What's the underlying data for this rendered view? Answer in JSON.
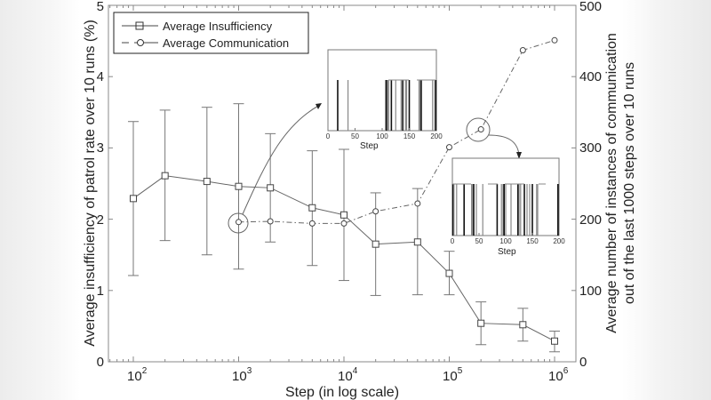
{
  "chart_data": {
    "type": "line",
    "title": "",
    "xlabel": "Step (in log scale)",
    "ylabel": "Average insufficiency of patrol rate over 10 runs (%)",
    "ylabel_right": [
      "Average number of instances of communication",
      "out of the last 1000 steps over 10 runs"
    ],
    "xscale": "log",
    "xlim": [
      60,
      1300000
    ],
    "ylim": [
      0,
      5
    ],
    "ylim_right": [
      0,
      500
    ],
    "x_ticks": [
      "10^2",
      "10^3",
      "10^4",
      "10^5",
      "10^6"
    ],
    "y_ticks": [
      "0",
      "1",
      "2",
      "3",
      "4",
      "5"
    ],
    "y_ticks_right": [
      "0",
      "100",
      "200",
      "300",
      "400",
      "500"
    ],
    "grid": false,
    "legend_position": "upper left",
    "series": [
      {
        "name": "Average Insufficiency",
        "axis": "left",
        "marker": "square",
        "linestyle": "solid",
        "x": [
          100,
          200,
          500,
          1000,
          2000,
          5000,
          10000,
          20000,
          50000,
          100000,
          200000,
          500000,
          1000000
        ],
        "values": [
          2.29,
          2.61,
          2.53,
          2.46,
          2.44,
          2.16,
          2.06,
          1.65,
          1.68,
          1.24,
          0.54,
          0.52,
          0.29
        ],
        "error_low": [
          1.21,
          1.7,
          1.5,
          1.3,
          1.68,
          1.35,
          1.14,
          0.93,
          0.94,
          0.94,
          0.24,
          0.29,
          0.14
        ],
        "error_high": [
          3.37,
          3.53,
          3.57,
          3.62,
          3.2,
          2.96,
          2.98,
          2.37,
          2.43,
          1.55,
          0.84,
          0.75,
          0.43
        ]
      },
      {
        "name": "Average Communication",
        "axis": "right",
        "marker": "circle",
        "linestyle": "dashdot",
        "x": [
          1000,
          2000,
          5000,
          10000,
          20000,
          50000,
          100000,
          200000,
          500000,
          1000000
        ],
        "values": [
          196,
          197,
          194,
          194,
          211,
          222,
          301,
          326,
          437,
          451
        ]
      }
    ],
    "annotations": [
      {
        "type": "circle",
        "at_series": "Average Communication",
        "x": 1000,
        "note": "zoom inset of communication pattern at step 10^3"
      },
      {
        "type": "circle",
        "at_series": "Average Communication",
        "x": 200000,
        "note": "zoom inset of communication pattern at step 2x10^5"
      }
    ],
    "insets": [
      {
        "xlabel": "Step",
        "x_ticks": [
          "0",
          "50",
          "100",
          "150",
          "200"
        ],
        "xlim": [
          0,
          200
        ],
        "type": "bar",
        "communication_steps": [
          18,
          37,
          106,
          108,
          110,
          112,
          117,
          125,
          135,
          138,
          143,
          145,
          150,
          168,
          170,
          172,
          193,
          197,
          199
        ]
      },
      {
        "xlabel": "Step",
        "x_ticks": [
          "0",
          "50",
          "100",
          "150",
          "200"
        ],
        "xlim": [
          0,
          200
        ],
        "type": "bar",
        "communication_steps": [
          1,
          3,
          8,
          22,
          36,
          38,
          40,
          45,
          57,
          84,
          92,
          95,
          97,
          100,
          110,
          123,
          125,
          128,
          135,
          140,
          145,
          150,
          158,
          160,
          198
        ]
      }
    ]
  },
  "legend": {
    "items": [
      "Average Insufficiency",
      "Average Communication"
    ]
  },
  "axes": {
    "x_label": "Step (in log scale)",
    "y_left_label": "Average insufficiency of patrol rate over 10 runs (%)",
    "y_right_label_line1": "Average number of instances of communication",
    "y_right_label_line2": "out of the last 1000 steps over 10 runs",
    "x_tick_base": "10",
    "x_tick_exps": [
      "2",
      "3",
      "4",
      "5",
      "6"
    ],
    "y_left_ticks": [
      "0",
      "1",
      "2",
      "3",
      "4",
      "5"
    ],
    "y_right_ticks": [
      "0",
      "100",
      "200",
      "300",
      "400",
      "500"
    ]
  },
  "insets": {
    "inset1": {
      "xlabel": "Step",
      "ticks": [
        "0",
        "50",
        "100",
        "150",
        "200"
      ]
    },
    "inset2": {
      "xlabel": "Step",
      "ticks": [
        "0",
        "50",
        "100",
        "150",
        "200"
      ]
    }
  }
}
